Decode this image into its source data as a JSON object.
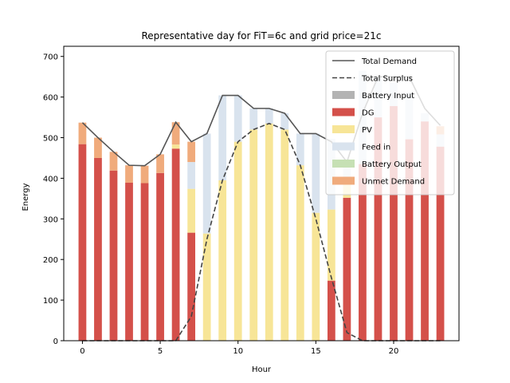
{
  "chart_data": {
    "type": "bar",
    "title": "Representative day for FiT=6c and grid price=21c",
    "xlabel": "Hour",
    "ylabel": "Energy",
    "xlim": [
      -1.2,
      24.2
    ],
    "ylim": [
      0,
      725
    ],
    "xticks": [
      0,
      5,
      10,
      15,
      20
    ],
    "yticks": [
      0,
      100,
      200,
      300,
      400,
      500,
      600,
      700
    ],
    "legend_position": "top-right",
    "hours": [
      0,
      1,
      2,
      3,
      4,
      5,
      6,
      7,
      8,
      9,
      10,
      11,
      12,
      13,
      14,
      15,
      16,
      17,
      18,
      19,
      20,
      21,
      22,
      23
    ],
    "stacked_series": [
      {
        "name": "Battery Input",
        "color": "#b3b3b3",
        "values": [
          0,
          0,
          0,
          0,
          0,
          0,
          0,
          0,
          0,
          0,
          0,
          0,
          0,
          0,
          0,
          0,
          0,
          0,
          0,
          0,
          0,
          0,
          0,
          0
        ]
      },
      {
        "name": "DG",
        "color": "#d4504a",
        "values": [
          484,
          450,
          419,
          389,
          388,
          413,
          473,
          266,
          0,
          0,
          0,
          0,
          0,
          0,
          0,
          0,
          148,
          352,
          435,
          550,
          578,
          496,
          540,
          478
        ]
      },
      {
        "name": "PV",
        "color": "#f7e597",
        "values": [
          0,
          0,
          0,
          0,
          0,
          0,
          10,
          108,
          264,
          395,
          490,
          520,
          535,
          520,
          432,
          315,
          175,
          35,
          0,
          0,
          0,
          0,
          0,
          0
        ]
      },
      {
        "name": "Feed in",
        "color": "#d9e3ee",
        "values": [
          0,
          0,
          0,
          0,
          0,
          0,
          0,
          66,
          246,
          209,
          114,
          52,
          37,
          40,
          78,
          195,
          174,
          53,
          230,
          100,
          57,
          115,
          20,
          30
        ]
      },
      {
        "name": "Battery Output",
        "color": "#c6e0b4",
        "values": [
          0,
          0,
          0,
          0,
          0,
          0,
          0,
          0,
          0,
          0,
          0,
          0,
          0,
          0,
          0,
          0,
          0,
          0,
          0,
          0,
          0,
          0,
          0,
          0
        ]
      },
      {
        "name": "Unmet Demand",
        "color": "#f0ab7c",
        "values": [
          53,
          50,
          46,
          43,
          43,
          46,
          55,
          50,
          0,
          0,
          0,
          0,
          0,
          0,
          0,
          0,
          0,
          0,
          0,
          0,
          0,
          0,
          0,
          20
        ]
      }
    ],
    "line_series": [
      {
        "name": "Total Demand",
        "color": "#555555",
        "style": "solid",
        "values": [
          537,
          500,
          465,
          432,
          431,
          459,
          538,
          490,
          510,
          604,
          604,
          572,
          572,
          560,
          510,
          510,
          490,
          440,
          560,
          650,
          650,
          650,
          572,
          530
        ]
      },
      {
        "name": "Total Surplus",
        "color": "#444444",
        "style": "dashed",
        "values": [
          0,
          0,
          0,
          0,
          0,
          0,
          0,
          60,
          250,
          395,
          490,
          520,
          535,
          520,
          432,
          300,
          155,
          20,
          0,
          0,
          0,
          0,
          0,
          0
        ]
      }
    ],
    "legend_order": [
      "Total Demand",
      "Total Surplus",
      "Battery Input",
      "DG",
      "PV",
      "Feed in",
      "Battery Output",
      "Unmet Demand"
    ]
  }
}
